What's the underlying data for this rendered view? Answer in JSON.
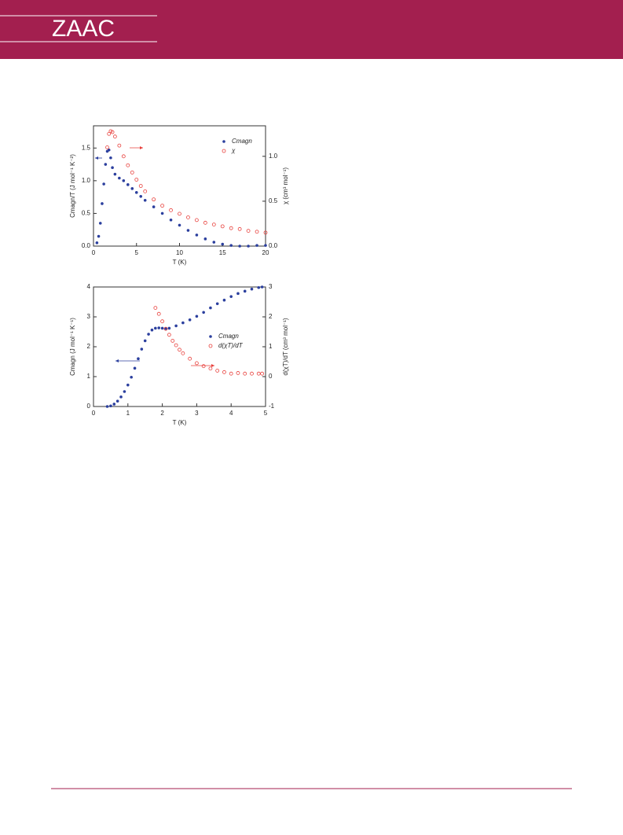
{
  "header": {
    "journal": "ZAAC"
  },
  "chart_data": [
    {
      "type": "scatter",
      "xlabel": "T (K)",
      "ylabel": "Cmagn/T (J mol⁻¹ K⁻²)",
      "y2label": "χ (cm³ mol⁻¹)",
      "xlim": [
        0,
        20
      ],
      "ylim": [
        0,
        1.84
      ],
      "y2lim": [
        0,
        1.34
      ],
      "xticks": [
        0,
        5,
        10,
        15,
        20
      ],
      "yticks": [
        {
          "value": 0,
          "label": "0.0"
        },
        {
          "value": 0.5,
          "label": "0.5"
        },
        {
          "value": 1,
          "label": "1.0"
        },
        {
          "value": 1.5,
          "label": "1.5"
        }
      ],
      "y2ticks": [
        {
          "value": 0,
          "label": "0.0"
        },
        {
          "value": 0.5,
          "label": "0.5"
        },
        {
          "value": 1,
          "label": "1.0"
        }
      ],
      "series": [
        {
          "name": "Cmagn",
          "color": "#2b3f9e",
          "marker": "filled",
          "x": [
            0.4,
            0.6,
            0.8,
            1.0,
            1.2,
            1.4,
            1.6,
            1.8,
            2.0,
            2.2,
            2.5,
            3.0,
            3.5,
            4.0,
            4.5,
            5.0,
            5.5,
            6.0,
            7.0,
            8.0,
            9.0,
            10.0,
            11.0,
            12.0,
            13.0,
            14.0,
            15.0,
            16.0,
            17.0,
            18.0,
            19.0,
            20.0
          ],
          "values": [
            0.05,
            0.15,
            0.35,
            0.65,
            0.95,
            1.25,
            1.45,
            1.47,
            1.35,
            1.2,
            1.1,
            1.04,
            1.0,
            0.94,
            0.88,
            0.82,
            0.76,
            0.7,
            0.6,
            0.5,
            0.4,
            0.32,
            0.24,
            0.17,
            0.11,
            0.06,
            0.03,
            0.01,
            0.0,
            0.0,
            0.01,
            0.01
          ]
        },
        {
          "name": "χ",
          "color": "#e8403c",
          "marker": "open",
          "axis": "y2",
          "x": [
            1.6,
            1.8,
            2.0,
            2.2,
            2.5,
            3.0,
            3.5,
            4.0,
            4.5,
            5.0,
            5.5,
            6.0,
            7.0,
            8.0,
            9.0,
            10.0,
            11.0,
            12.0,
            13.0,
            14.0,
            15.0,
            16.0,
            17.0,
            18.0,
            19.0,
            20.0
          ],
          "values": [
            1.1,
            1.25,
            1.28,
            1.27,
            1.22,
            1.12,
            1.0,
            0.9,
            0.82,
            0.74,
            0.67,
            0.61,
            0.52,
            0.45,
            0.4,
            0.36,
            0.32,
            0.29,
            0.26,
            0.24,
            0.22,
            0.2,
            0.19,
            0.17,
            0.16,
            0.15
          ]
        }
      ]
    },
    {
      "type": "scatter",
      "xlabel": "T (K)",
      "ylabel": "Cmagn (J mol⁻¹ K⁻¹)",
      "y2label": "d(χT)/dT  (cm³ mol⁻¹)",
      "xlim": [
        0,
        5
      ],
      "ylim": [
        0,
        4
      ],
      "y2lim": [
        -1,
        3
      ],
      "xticks": [
        0,
        1,
        2,
        3,
        4,
        5
      ],
      "yticks": [
        0,
        1,
        2,
        3,
        4
      ],
      "y2ticks": [
        -1,
        0,
        1,
        2,
        3
      ],
      "series": [
        {
          "name": "Cmagn",
          "color": "#2b3f9e",
          "marker": "filled",
          "x": [
            0.4,
            0.5,
            0.6,
            0.7,
            0.8,
            0.9,
            1.0,
            1.1,
            1.2,
            1.3,
            1.4,
            1.5,
            1.6,
            1.7,
            1.8,
            1.9,
            2.0,
            2.1,
            2.2,
            2.4,
            2.6,
            2.8,
            3.0,
            3.2,
            3.4,
            3.6,
            3.8,
            4.0,
            4.2,
            4.4,
            4.6,
            4.8,
            4.9
          ],
          "values": [
            0.0,
            0.02,
            0.08,
            0.18,
            0.32,
            0.5,
            0.72,
            0.98,
            1.28,
            1.6,
            1.92,
            2.2,
            2.42,
            2.56,
            2.62,
            2.63,
            2.62,
            2.61,
            2.62,
            2.7,
            2.8,
            2.9,
            3.02,
            3.15,
            3.3,
            3.44,
            3.56,
            3.68,
            3.78,
            3.86,
            3.93,
            3.98,
            4.0
          ]
        },
        {
          "name": "d(χT)/dT",
          "color": "#e8403c",
          "marker": "open",
          "axis": "y2",
          "x": [
            1.8,
            1.9,
            2.0,
            2.1,
            2.2,
            2.3,
            2.4,
            2.5,
            2.6,
            2.8,
            3.0,
            3.2,
            3.4,
            3.6,
            3.8,
            4.0,
            4.2,
            4.4,
            4.6,
            4.8,
            4.9
          ],
          "values": [
            2.3,
            2.1,
            1.85,
            1.6,
            1.4,
            1.2,
            1.05,
            0.9,
            0.78,
            0.6,
            0.45,
            0.35,
            0.27,
            0.2,
            0.15,
            0.1,
            0.12,
            0.1,
            0.1,
            0.1,
            0.1
          ]
        }
      ]
    }
  ]
}
